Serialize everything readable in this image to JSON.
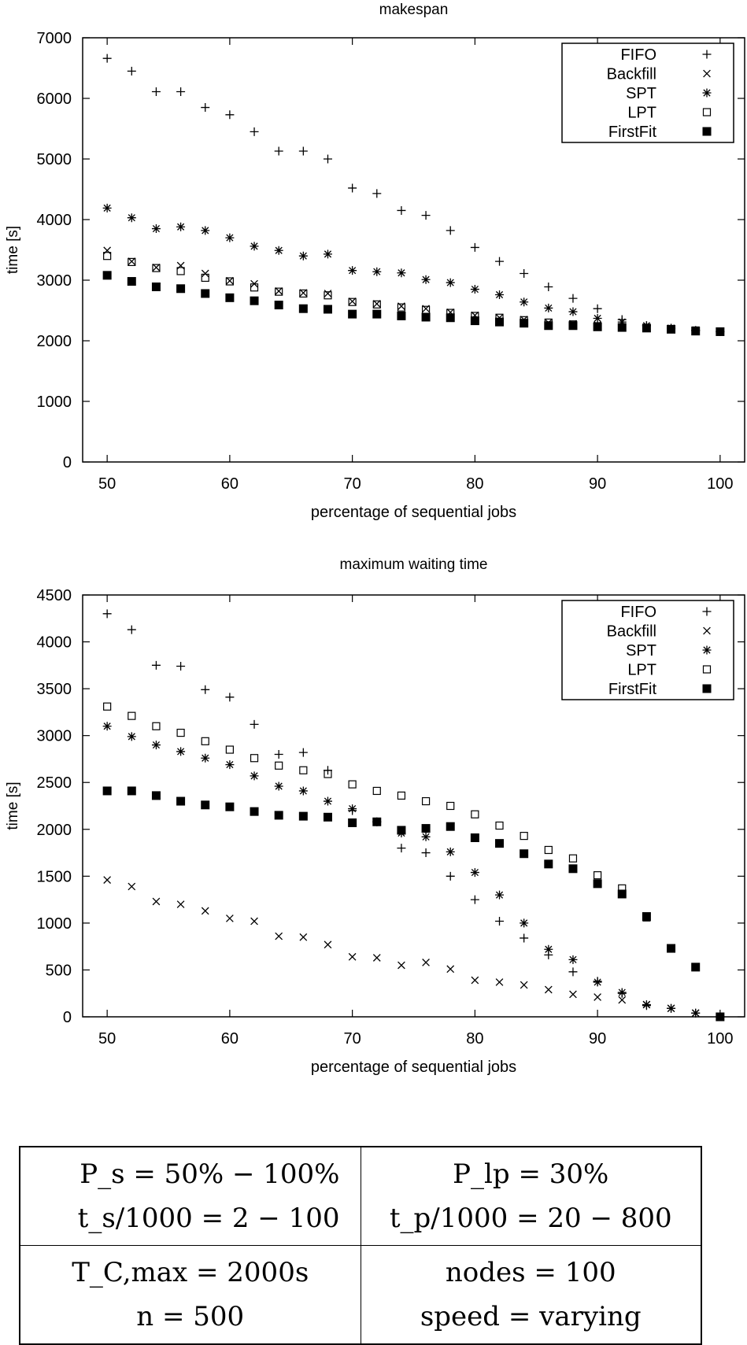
{
  "chart_data": [
    {
      "type": "scatter",
      "title": "makespan",
      "xlabel": "percentage of sequential jobs",
      "ylabel": "time [s]",
      "xlim": [
        48,
        102
      ],
      "ylim": [
        0,
        7000
      ],
      "xticks": [
        50,
        60,
        70,
        80,
        90,
        100
      ],
      "yticks": [
        0,
        1000,
        2000,
        3000,
        4000,
        5000,
        6000,
        7000
      ],
      "grid": false,
      "legend": "top-right",
      "x": [
        50,
        52,
        54,
        56,
        58,
        60,
        62,
        64,
        66,
        68,
        70,
        72,
        74,
        76,
        78,
        80,
        82,
        84,
        86,
        88,
        90,
        92,
        94,
        96,
        98,
        100
      ],
      "series": [
        {
          "name": "FIFO",
          "marker": "plus",
          "values": [
            6660,
            6450,
            6110,
            6110,
            5850,
            5730,
            5450,
            5130,
            5130,
            5000,
            4520,
            4430,
            4150,
            4070,
            3820,
            3540,
            3310,
            3110,
            2890,
            2700,
            2530,
            2350,
            2250,
            2200,
            2170,
            2150
          ]
        },
        {
          "name": "Backfill",
          "marker": "cross",
          "values": [
            3490,
            3310,
            3210,
            3240,
            3110,
            2990,
            2940,
            2820,
            2790,
            2780,
            2650,
            2610,
            2570,
            2530,
            2470,
            2420,
            2380,
            2350,
            2300,
            2280,
            2260,
            2230,
            2220,
            2200,
            2170,
            2150
          ]
        },
        {
          "name": "SPT",
          "marker": "star",
          "values": [
            4190,
            4030,
            3850,
            3880,
            3820,
            3700,
            3560,
            3490,
            3400,
            3430,
            3160,
            3140,
            3120,
            3010,
            2960,
            2850,
            2760,
            2640,
            2540,
            2480,
            2370,
            2310,
            2250,
            2210,
            2170,
            2150
          ]
        },
        {
          "name": "LPT",
          "marker": "square",
          "values": [
            3400,
            3300,
            3200,
            3150,
            3040,
            2980,
            2880,
            2810,
            2780,
            2750,
            2640,
            2600,
            2550,
            2510,
            2460,
            2410,
            2380,
            2340,
            2300,
            2270,
            2240,
            2220,
            2210,
            2190,
            2170,
            2150
          ]
        },
        {
          "name": "FirstFit",
          "marker": "filled-square",
          "values": [
            3080,
            2980,
            2890,
            2860,
            2780,
            2710,
            2660,
            2590,
            2530,
            2520,
            2440,
            2440,
            2410,
            2390,
            2380,
            2330,
            2310,
            2290,
            2250,
            2250,
            2230,
            2220,
            2210,
            2190,
            2160,
            2150
          ]
        }
      ]
    },
    {
      "type": "scatter",
      "title": "maximum waiting time",
      "xlabel": "percentage of sequential jobs",
      "ylabel": "time [s]",
      "xlim": [
        48,
        102
      ],
      "ylim": [
        0,
        4500
      ],
      "xticks": [
        50,
        60,
        70,
        80,
        90,
        100
      ],
      "yticks": [
        0,
        500,
        1000,
        1500,
        2000,
        2500,
        3000,
        3500,
        4000,
        4500
      ],
      "grid": false,
      "legend": "top-right",
      "x": [
        50,
        52,
        54,
        56,
        58,
        60,
        62,
        64,
        66,
        68,
        70,
        72,
        74,
        76,
        78,
        80,
        82,
        84,
        86,
        88,
        90,
        92,
        94,
        96,
        98,
        100
      ],
      "series": [
        {
          "name": "FIFO",
          "marker": "plus",
          "values": [
            4300,
            4130,
            3750,
            3740,
            3490,
            3410,
            3120,
            2800,
            2820,
            2630,
            2200,
            2080,
            1800,
            1750,
            1500,
            1250,
            1020,
            840,
            660,
            480,
            380,
            250,
            120,
            90,
            40,
            0
          ]
        },
        {
          "name": "Backfill",
          "marker": "cross",
          "values": [
            1460,
            1390,
            1230,
            1200,
            1130,
            1050,
            1020,
            860,
            850,
            770,
            640,
            630,
            550,
            580,
            510,
            390,
            370,
            340,
            290,
            240,
            210,
            180,
            130,
            90,
            40,
            0
          ]
        },
        {
          "name": "SPT",
          "marker": "star",
          "values": [
            3100,
            2990,
            2900,
            2830,
            2760,
            2690,
            2570,
            2460,
            2410,
            2300,
            2220,
            2080,
            1960,
            1920,
            1760,
            1540,
            1300,
            1000,
            720,
            610,
            370,
            260,
            130,
            90,
            40,
            0
          ]
        },
        {
          "name": "LPT",
          "marker": "square",
          "values": [
            3310,
            3210,
            3100,
            3030,
            2940,
            2850,
            2760,
            2680,
            2630,
            2590,
            2480,
            2410,
            2360,
            2300,
            2250,
            2160,
            2040,
            1930,
            1780,
            1690,
            1510,
            1370,
            1060,
            730,
            530,
            0
          ]
        },
        {
          "name": "FirstFit",
          "marker": "filled-square",
          "values": [
            2410,
            2410,
            2360,
            2300,
            2260,
            2240,
            2190,
            2150,
            2140,
            2130,
            2070,
            2080,
            1990,
            2010,
            2030,
            1910,
            1850,
            1740,
            1630,
            1580,
            1420,
            1310,
            1070,
            730,
            530,
            0
          ]
        }
      ]
    }
  ],
  "params": {
    "ps": "P_s = 50% − 100%",
    "ts": "t_s/1000 = 2 − 100",
    "plp": "P_lp = 30%",
    "tp": "t_p/1000 = 20 − 800",
    "tc": "T_C,max = 2000s",
    "n": "n = 500",
    "nodes": "nodes = 100",
    "speed": "speed = varying"
  }
}
